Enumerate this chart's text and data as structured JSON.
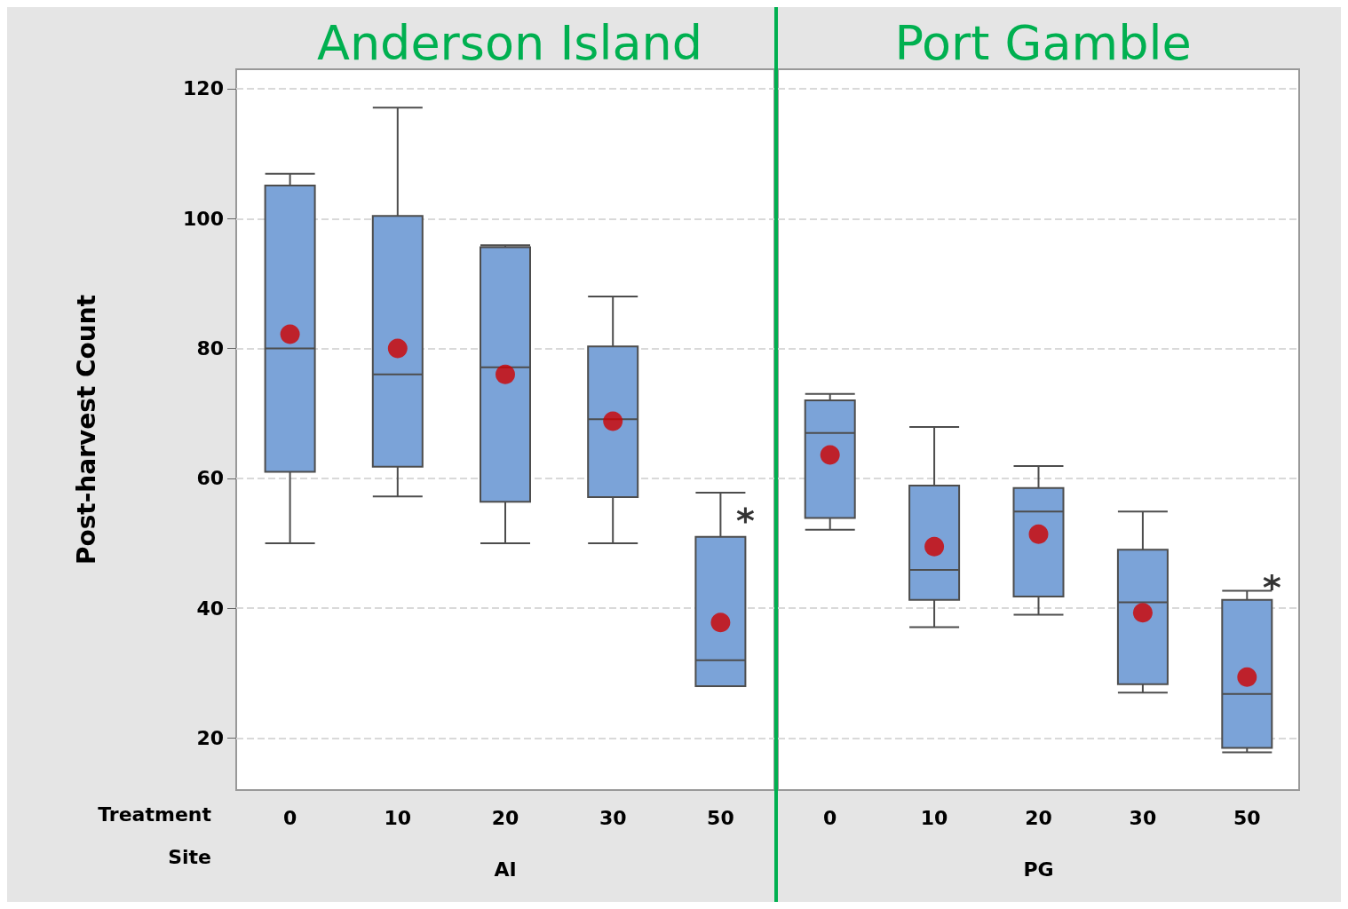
{
  "chart_data": [
    {
      "type": "box",
      "title": "Anderson Island",
      "ylabel": "Post-harvest Count",
      "xlabel": "AI",
      "categories": [
        "0",
        "10",
        "20",
        "30",
        "50"
      ],
      "boxes": [
        {
          "low": 50,
          "q1": 61,
          "median": 80,
          "q3": 105.1,
          "high": 106.9,
          "mean": 82.2
        },
        {
          "low": 57.2,
          "q1": 61.8,
          "median": 76,
          "q3": 100.4,
          "high": 117.1,
          "mean": 80
        },
        {
          "low": 50,
          "q1": 56.4,
          "median": 77.1,
          "q3": 95.6,
          "high": 95.9,
          "mean": 76
        },
        {
          "low": 50,
          "q1": 57.1,
          "median": 69.1,
          "q3": 80.3,
          "high": 88,
          "mean": 68.8
        },
        {
          "low": 28,
          "q1": 28,
          "median": 32,
          "q3": 51,
          "high": 57.8,
          "mean": 37.8,
          "outliers": [
            54.3
          ]
        }
      ],
      "color": "#7ba3d8",
      "ylim": [
        12,
        123
      ],
      "yticks": [
        20,
        40,
        60,
        80,
        100,
        120
      ],
      "grid": "y",
      "annotations": [
        "Treatment",
        "Site"
      ]
    },
    {
      "type": "box",
      "title": "Port Gamble",
      "xlabel": "PG",
      "categories": [
        "0",
        "10",
        "20",
        "30",
        "50"
      ],
      "boxes": [
        {
          "low": 52.1,
          "q1": 53.9,
          "median": 67,
          "q3": 72,
          "high": 73,
          "mean": 63.6
        },
        {
          "low": 37.1,
          "q1": 41.3,
          "median": 45.9,
          "q3": 58.9,
          "high": 67.9,
          "mean": 49.5
        },
        {
          "low": 39,
          "q1": 41.8,
          "median": 54.9,
          "q3": 58.5,
          "high": 61.9,
          "mean": 51.4
        },
        {
          "low": 27,
          "q1": 28.3,
          "median": 40.9,
          "q3": 49,
          "high": 54.9,
          "mean": 39.3
        },
        {
          "low": 17.8,
          "q1": 18.5,
          "median": 26.8,
          "q3": 41.3,
          "high": 42.7,
          "mean": 29.4,
          "outliers": [
            44
          ]
        }
      ],
      "color": "#7ba3d8",
      "ylim": [
        12,
        123
      ],
      "yticks": [
        20,
        40,
        60,
        80,
        100,
        120
      ],
      "grid": "y",
      "tick_labels": "x"
    }
  ]
}
